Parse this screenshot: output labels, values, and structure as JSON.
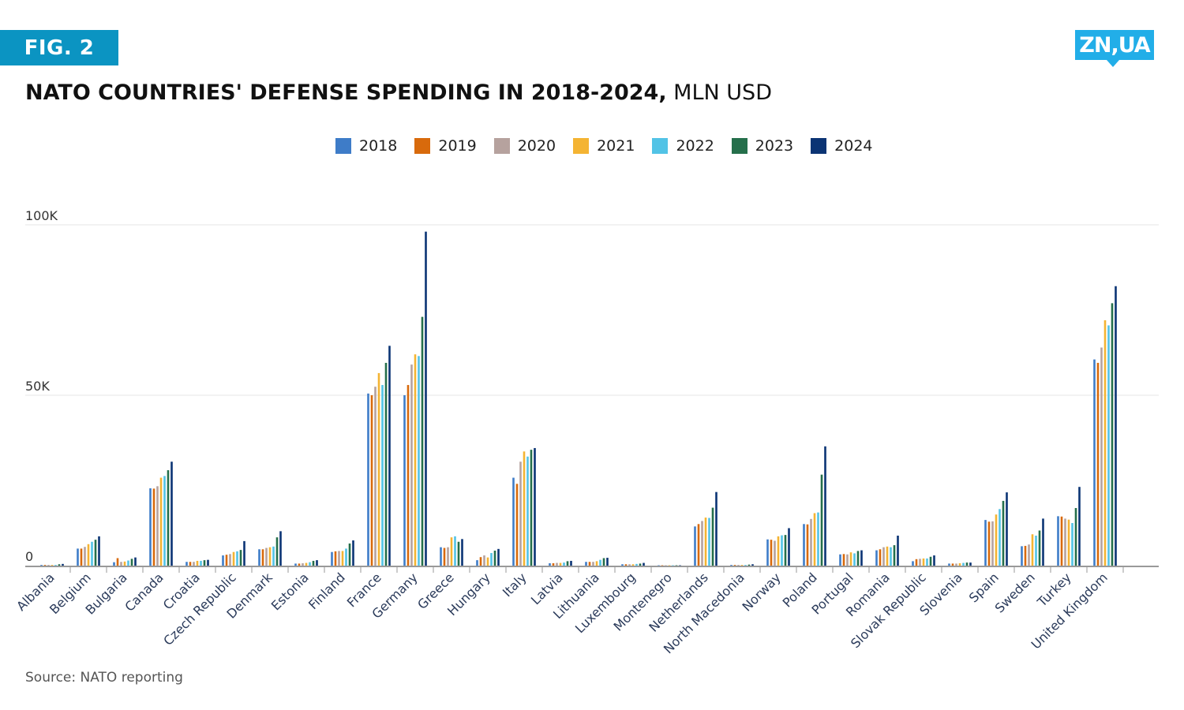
{
  "header": {
    "fig_label": "FIG. 2",
    "title_bold": "NATO COUNTRIES' DEFENSE SPENDING IN 2018-2024,",
    "title_unit": " MLN USD",
    "logo_text": "ZN,UA"
  },
  "footer": {
    "source": "Source: NATO reporting"
  },
  "chart_data": {
    "type": "bar",
    "title": "NATO COUNTRIES' DEFENSE SPENDING IN 2018-2024, MLN USD",
    "xlabel": "",
    "ylabel": "",
    "ylim": [
      0,
      100000
    ],
    "yticks": [
      0,
      50000,
      100000
    ],
    "ytick_labels": [
      "0",
      "50K",
      "100K"
    ],
    "grid": true,
    "legend_position": "top-center",
    "categories": [
      "Albania",
      "Belgium",
      "Bulgaria",
      "Canada",
      "Croatia",
      "Czech Republic",
      "Denmark",
      "Estonia",
      "Finland",
      "France",
      "Germany",
      "Greece",
      "Hungary",
      "Italy",
      "Latvia",
      "Lithuania",
      "Luxembourg",
      "Montenegro",
      "Netherlands",
      "North Macedonia",
      "Norway",
      "Poland",
      "Portugal",
      "Romania",
      "Slovak Republic",
      "Slovenia",
      "Spain",
      "Sweden",
      "Turkey",
      "United Kingdom"
    ],
    "series": [
      {
        "name": "2018",
        "color": "#3e7cc8",
        "values": [
          200,
          5000,
          1000,
          22700,
          1100,
          3000,
          4800,
          600,
          4000,
          50500,
          50000,
          5400,
          1600,
          25800,
          700,
          1100,
          400,
          100,
          11500,
          200,
          7700,
          12200,
          3300,
          4500,
          1300,
          600,
          13400,
          5700,
          14500,
          60500
        ]
      },
      {
        "name": "2019",
        "color": "#d86a0c",
        "values": [
          200,
          5000,
          2200,
          22600,
          1100,
          3200,
          4800,
          600,
          4200,
          50000,
          53000,
          5200,
          2500,
          24000,
          700,
          1100,
          400,
          100,
          12200,
          200,
          7600,
          12100,
          3400,
          4800,
          1900,
          600,
          12900,
          5800,
          14400,
          59500
        ]
      },
      {
        "name": "2020",
        "color": "#b6a29e",
        "values": [
          200,
          5500,
          1100,
          23300,
          1100,
          3400,
          5200,
          700,
          4300,
          52500,
          59000,
          5400,
          3000,
          30500,
          800,
          1100,
          400,
          100,
          13100,
          200,
          7300,
          13700,
          3300,
          5400,
          2000,
          600,
          13000,
          6200,
          13800,
          64000
        ]
      },
      {
        "name": "2021",
        "color": "#f4b433",
        "values": [
          200,
          6300,
          1200,
          25800,
          1400,
          4000,
          5400,
          800,
          4300,
          56500,
          62000,
          8300,
          2400,
          33500,
          800,
          1300,
          400,
          100,
          14100,
          200,
          8600,
          15400,
          3900,
          5600,
          2100,
          700,
          15000,
          9200,
          13500,
          72000
        ]
      },
      {
        "name": "2022",
        "color": "#52c3e6",
        "values": [
          200,
          7000,
          1500,
          26300,
          1400,
          4200,
          5600,
          1000,
          5000,
          53000,
          61500,
          8600,
          3700,
          32000,
          900,
          1700,
          500,
          100,
          14000,
          200,
          8900,
          15600,
          3600,
          5400,
          2100,
          800,
          16600,
          8800,
          12500,
          70500
        ]
      },
      {
        "name": "2023",
        "color": "#256f4b",
        "values": [
          400,
          7600,
          2000,
          28000,
          1600,
          4600,
          8300,
          1400,
          6500,
          59500,
          73000,
          7000,
          4400,
          34000,
          1300,
          2200,
          600,
          100,
          17000,
          300,
          9000,
          26700,
          4300,
          6000,
          2600,
          900,
          19000,
          10300,
          16900,
          77000
        ]
      },
      {
        "name": "2024",
        "color": "#0b3474",
        "values": [
          500,
          8600,
          2400,
          30500,
          1700,
          7200,
          10100,
          1600,
          7400,
          64500,
          98000,
          7800,
          4900,
          34500,
          1400,
          2300,
          800,
          100,
          21600,
          400,
          11000,
          35000,
          4500,
          8800,
          3000,
          900,
          21500,
          13800,
          23100,
          82000
        ]
      }
    ]
  }
}
